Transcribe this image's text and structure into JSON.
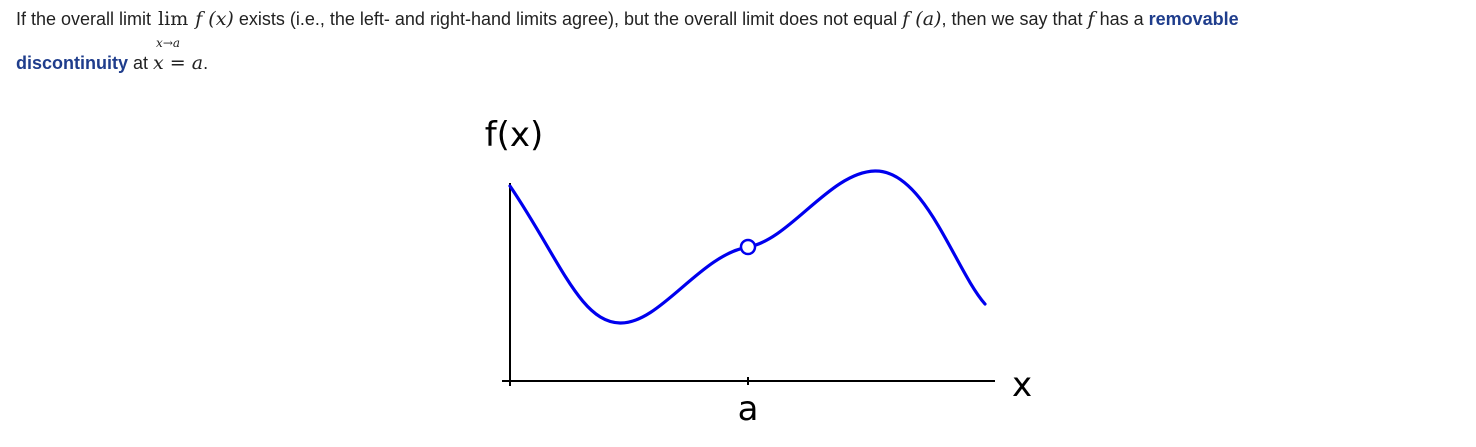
{
  "text": {
    "part1": "If the overall limit ",
    "lim_word": "lim",
    "lim_sub": "x→a",
    "fx": "f (x)",
    "part2": " exists (i.e., the left- and right-hand limits agree), but the overall limit does not equal ",
    "fa": "f (a)",
    "part3": ", then we say that ",
    "f": "f",
    "part4": " has a ",
    "term_line1": "removable",
    "term_line2": "discontinuity",
    "part5": " at ",
    "x_eq": "x = a",
    "end": "."
  },
  "figure": {
    "y_axis_label": "f(x)",
    "x_axis_label": "x",
    "a_label": "a",
    "curve_color": "#0000ee",
    "axis_color": "#000000",
    "hole": "open-circle"
  }
}
